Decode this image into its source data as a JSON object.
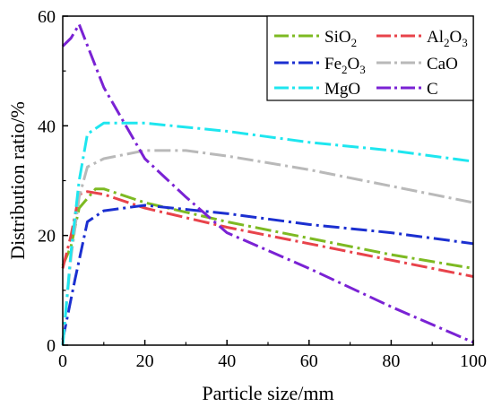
{
  "chart_data": {
    "type": "line",
    "title": "",
    "xlabel": "Particle size/mm",
    "ylabel": "Distribution ratio/%",
    "xlim": [
      0,
      100
    ],
    "ylim": [
      0,
      60
    ],
    "xticks": [
      0,
      20,
      40,
      60,
      80,
      100
    ],
    "yticks": [
      0,
      20,
      40,
      60
    ],
    "xtick_labels": [
      "0",
      "20",
      "40",
      "60",
      "80",
      "100"
    ],
    "ytick_labels": [
      "0",
      "20",
      "40",
      "60"
    ],
    "grid": false,
    "legend_position": "top-right",
    "series": [
      {
        "name": "SiO2",
        "label_main": "SiO",
        "label_sub": "2",
        "label_tail": "",
        "color": "#7dba22",
        "x": [
          0,
          2,
          4,
          8,
          10,
          20,
          40,
          60,
          80,
          100
        ],
        "y": [
          14.5,
          18,
          25,
          28.5,
          28.5,
          26,
          22.5,
          19.5,
          16.5,
          14
        ]
      },
      {
        "name": "Al2O3",
        "label_main": "Al",
        "label_sub": "2",
        "label_tail": "O",
        "label_sub2": "3",
        "color": "#e8434b",
        "x": [
          0,
          2,
          4,
          6,
          10,
          20,
          40,
          60,
          80,
          100
        ],
        "y": [
          14,
          20,
          27.5,
          28,
          27.5,
          25,
          21.5,
          18.5,
          15.5,
          12.5
        ]
      },
      {
        "name": "Fe2O3",
        "label_main": "Fe",
        "label_sub": "2",
        "label_tail": "O",
        "label_sub2": "3",
        "color": "#1b2fd0",
        "x": [
          0,
          3,
          6,
          10,
          20,
          40,
          60,
          80,
          100
        ],
        "y": [
          1,
          12,
          22.5,
          24.5,
          25.5,
          24,
          22,
          20.5,
          18.5
        ]
      },
      {
        "name": "CaO",
        "label_main": "CaO",
        "label_sub": "",
        "label_tail": "",
        "color": "#b9b9b9",
        "x": [
          0,
          2,
          4,
          6,
          10,
          20,
          30,
          40,
          60,
          80,
          100
        ],
        "y": [
          0,
          16,
          27,
          32.5,
          34,
          35.5,
          35.5,
          34.5,
          32,
          29,
          26
        ]
      },
      {
        "name": "MgO",
        "label_main": "MgO",
        "label_sub": "",
        "label_tail": "",
        "color": "#1ee6ef",
        "x": [
          0,
          2,
          4,
          6,
          10,
          20,
          40,
          60,
          80,
          100
        ],
        "y": [
          0,
          17,
          30,
          38.5,
          40.5,
          40.5,
          39,
          37,
          35.5,
          33.5
        ]
      },
      {
        "name": "C",
        "label_main": "C",
        "label_sub": "",
        "label_tail": "",
        "color": "#7a22d4",
        "x": [
          0,
          2,
          4,
          10,
          20,
          30,
          40,
          60,
          80,
          100
        ],
        "y": [
          54.5,
          56,
          58.5,
          47,
          34,
          27,
          20.5,
          14,
          7,
          0.5
        ]
      }
    ]
  }
}
